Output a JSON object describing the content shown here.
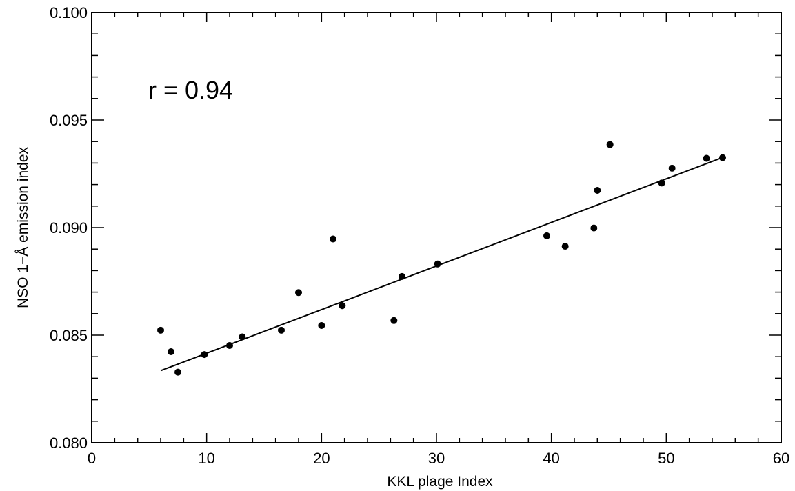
{
  "chart_data": {
    "type": "scatter",
    "title": "",
    "xlabel": "KKL plage Index",
    "ylabel": "NSO 1−Å emission index",
    "xlim": [
      0,
      60
    ],
    "ylim": [
      0.08,
      0.1
    ],
    "x_ticks": [
      "0",
      "10",
      "20",
      "30",
      "40",
      "50",
      "60"
    ],
    "y_ticks": [
      "0.080",
      "0.085",
      "0.090",
      "0.095",
      "0.100"
    ],
    "annotation": "r = 0.94",
    "grid": false,
    "series": [
      {
        "name": "",
        "points": [
          [
            6.0,
            0.08523
          ],
          [
            6.9,
            0.08423
          ],
          [
            7.5,
            0.08328
          ],
          [
            9.8,
            0.0841
          ],
          [
            12.0,
            0.08452
          ],
          [
            13.1,
            0.08492
          ],
          [
            16.5,
            0.08523
          ],
          [
            18.0,
            0.08698
          ],
          [
            20.0,
            0.08545
          ],
          [
            21.0,
            0.08947
          ],
          [
            21.8,
            0.08637
          ],
          [
            26.3,
            0.08568
          ],
          [
            27.0,
            0.08773
          ],
          [
            30.1,
            0.08831
          ],
          [
            39.6,
            0.08962
          ],
          [
            41.2,
            0.08913
          ],
          [
            43.7,
            0.08998
          ],
          [
            44.0,
            0.09173
          ],
          [
            45.1,
            0.09386
          ],
          [
            49.6,
            0.09207
          ],
          [
            50.5,
            0.09276
          ],
          [
            53.5,
            0.09322
          ],
          [
            54.9,
            0.09325
          ]
        ]
      }
    ],
    "fit_line": {
      "x": [
        6.0,
        55.0
      ],
      "y": [
        0.08335,
        0.09328
      ]
    },
    "colors": {
      "marker": "#000000",
      "line": "#000000",
      "axis": "#000000"
    }
  }
}
